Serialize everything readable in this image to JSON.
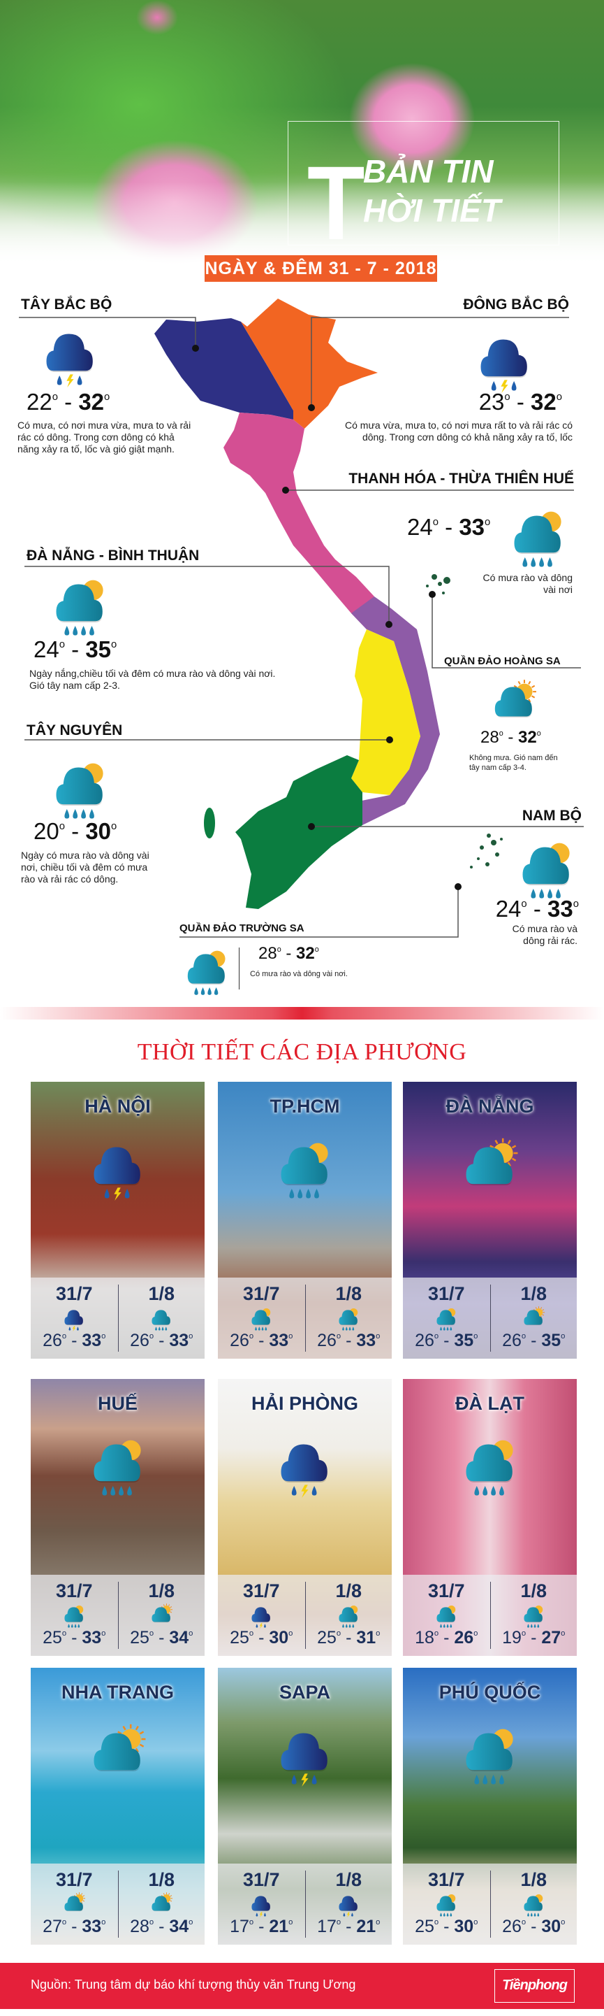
{
  "header": {
    "title_big_letter": "T",
    "title_line1": "BẢN TIN",
    "title_line2": "HỜI TIẾT",
    "date": "NGÀY & ĐÊM 31 - 7 - 2018"
  },
  "colors": {
    "tay_bac": "#2e3085",
    "dong_bac": "#f26522",
    "bac_trung_bo": "#d44f93",
    "nam_trung_bo": "#8e5ba7",
    "tay_nguyen": "#f7e715",
    "nam_bo": "#0b7d40",
    "accent_red": "#e5203a",
    "date_orange": "#ef5d28"
  },
  "regions": {
    "tay_bac": {
      "name": "TÂY BẮC BỘ",
      "icon": "thunder",
      "low": "22",
      "high": "32",
      "desc": "Có mưa, có nơi mưa vừa, mưa to và rải rác có dông. Trong cơn dông có khả năng xảy ra tố, lốc và gió giật mạnh."
    },
    "dong_bac": {
      "name": "ĐÔNG BẮC BỘ",
      "icon": "thunder",
      "low": "23",
      "high": "32",
      "desc": "Có mưa vừa, mưa to, có nơi mưa rất to và rải rác có dông. Trong cơn dông có khả năng xảy ra tố, lốc"
    },
    "thanh_hoa": {
      "name": "THANH HÓA - THỪA THIÊN HUẾ",
      "icon": "rain-sun",
      "low": "24",
      "high": "33",
      "desc": "Có mưa rào và dông vài nơi"
    },
    "da_nang": {
      "name": "ĐÀ NẴNG - BÌNH THUẬN",
      "icon": "rain-sun",
      "low": "24",
      "high": "35",
      "desc": "Ngày nắng,chiều tối và đêm có mưa rào và dông vài nơi. Gió tây nam cấp 2-3."
    },
    "hoang_sa": {
      "name": "QUẦN ĐẢO HOÀNG SA",
      "icon": "sun-cloud",
      "low": "28",
      "high": "32",
      "desc": "Không mưa. Gió nam đến tây nam cấp 3-4."
    },
    "tay_nguyen": {
      "name": "TÂY NGUYÊN",
      "icon": "rain-sun",
      "low": "20",
      "high": "30",
      "desc": "Ngày có mưa rào và dông vài nơi, chiều tối và đêm có mưa rào và rải rác có dông."
    },
    "nam_bo": {
      "name": "NAM BỘ",
      "icon": "rain-sun",
      "low": "24",
      "high": "33",
      "desc": "Có mưa rào và dông rải rác."
    },
    "truong_sa": {
      "name": "QUẦN ĐẢO TRƯỜNG SA",
      "icon": "rain-sun",
      "low": "28",
      "high": "32",
      "desc": "Có mưa rào và dông vài nơi."
    }
  },
  "local_title": "THỜI TIẾT CÁC ĐỊA PHƯƠNG",
  "cities": [
    {
      "name": "HÀ NỘI",
      "icon": "thunder",
      "bg": "linear-gradient(180deg,#6f8a5a 0,#8a3b2a 35%,#9b3a2b 55%,#c9c3b8 75%,#9a9a8f 100%)",
      "days": [
        {
          "date": "31/7",
          "icon": "thunder",
          "low": "26",
          "high": "33"
        },
        {
          "date": "1/8",
          "icon": "rain",
          "low": "26",
          "high": "33"
        }
      ]
    },
    {
      "name": "TP.HCM",
      "icon": "rain-sun",
      "bg": "linear-gradient(180deg,#3d86c3 0,#6aa6d4 40%,#a8a39a 60%,#9a5a3c 80%,#b78468 100%)",
      "days": [
        {
          "date": "31/7",
          "icon": "rain-sun",
          "low": "26",
          "high": "33"
        },
        {
          "date": "1/8",
          "icon": "rain-sun",
          "low": "26",
          "high": "33"
        }
      ]
    },
    {
      "name": "ĐÀ NẴNG",
      "icon": "sun-cloud",
      "bg": "linear-gradient(180deg,#2a2a6a 0,#6a3f8a 25%,#c23c7a 45%,#3a2f6e 65%,#5a4fa0 80%,#4a4070 100%)",
      "days": [
        {
          "date": "31/7",
          "icon": "rain-sun",
          "low": "26",
          "high": "35"
        },
        {
          "date": "1/8",
          "icon": "sun-cloud",
          "low": "26",
          "high": "35"
        }
      ]
    },
    {
      "name": "HUẾ",
      "icon": "rain-sun",
      "bg": "linear-gradient(180deg,#8f86a8 0,#c9a08a 18%,#7a4a3a 35%,#6e5a4a 55%,#8a7e70 75%,#b9b3aa 100%)",
      "days": [
        {
          "date": "31/7",
          "icon": "rain-sun",
          "low": "25",
          "high": "33"
        },
        {
          "date": "1/8",
          "icon": "sun-cloud",
          "low": "25",
          "high": "34"
        }
      ]
    },
    {
      "name": "HẢI PHÒNG",
      "icon": "thunder",
      "bg": "linear-gradient(180deg,#f5f5f5 0,#f0eee8 25%,#e8d49a 45%,#d9b86a 70%,#c99a70 85%,#e6d3c8 100%)",
      "days": [
        {
          "date": "31/7",
          "icon": "thunder",
          "low": "25",
          "high": "30"
        },
        {
          "date": "1/8",
          "icon": "rain-sun",
          "low": "25",
          "high": "31"
        }
      ]
    },
    {
      "name": "ĐÀ LẠT",
      "icon": "rain-sun",
      "bg": "linear-gradient(90deg,#c9577e 0,#e88aa6 30%,#f0d4dc 50%,#e07a98 70%,#c24f73 100%)",
      "days": [
        {
          "date": "31/7",
          "icon": "rain-sun",
          "low": "18",
          "high": "26"
        },
        {
          "date": "1/8",
          "icon": "rain-sun",
          "low": "19",
          "high": "27"
        }
      ]
    },
    {
      "name": "NHA TRANG",
      "icon": "sun-cloud",
      "bg": "linear-gradient(180deg,#3a9ad8 0,#8ccbe8 30%,#2aa8cf 45%,#1fa5c0 65%,#7fd0d8 80%,#e8e2d0 100%)",
      "days": [
        {
          "date": "31/7",
          "icon": "sun-cloud",
          "low": "27",
          "high": "33"
        },
        {
          "date": "1/8",
          "icon": "sun-cloud",
          "low": "28",
          "high": "34"
        }
      ]
    },
    {
      "name": "SAPA",
      "icon": "thunder",
      "bg": "linear-gradient(180deg,#9cc8e0 0,#7d9a6a 20%,#3f6a2e 40%,#cfd3cc 60%,#5a7a45 80%,#c9ccc4 100%)",
      "days": [
        {
          "date": "31/7",
          "icon": "thunder",
          "low": "17",
          "high": "21"
        },
        {
          "date": "1/8",
          "icon": "thunder",
          "low": "17",
          "high": "21"
        }
      ]
    },
    {
      "name": "PHÚ QUỐC",
      "icon": "rain-sun",
      "bg": "linear-gradient(180deg,#2a6ec2 0,#6aa2d8 25%,#4a7a3a 50%,#2f5a2a 65%,#d8c8a0 80%,#ece6d8 100%)",
      "days": [
        {
          "date": "31/7",
          "icon": "rain-sun",
          "low": "25",
          "high": "30"
        },
        {
          "date": "1/8",
          "icon": "rain-sun",
          "low": "26",
          "high": "30"
        }
      ]
    }
  ],
  "footer": {
    "source": "Nguồn: Trung tâm dự báo khí tượng thủy văn Trung Ương",
    "logo": "Tiềnphong"
  }
}
